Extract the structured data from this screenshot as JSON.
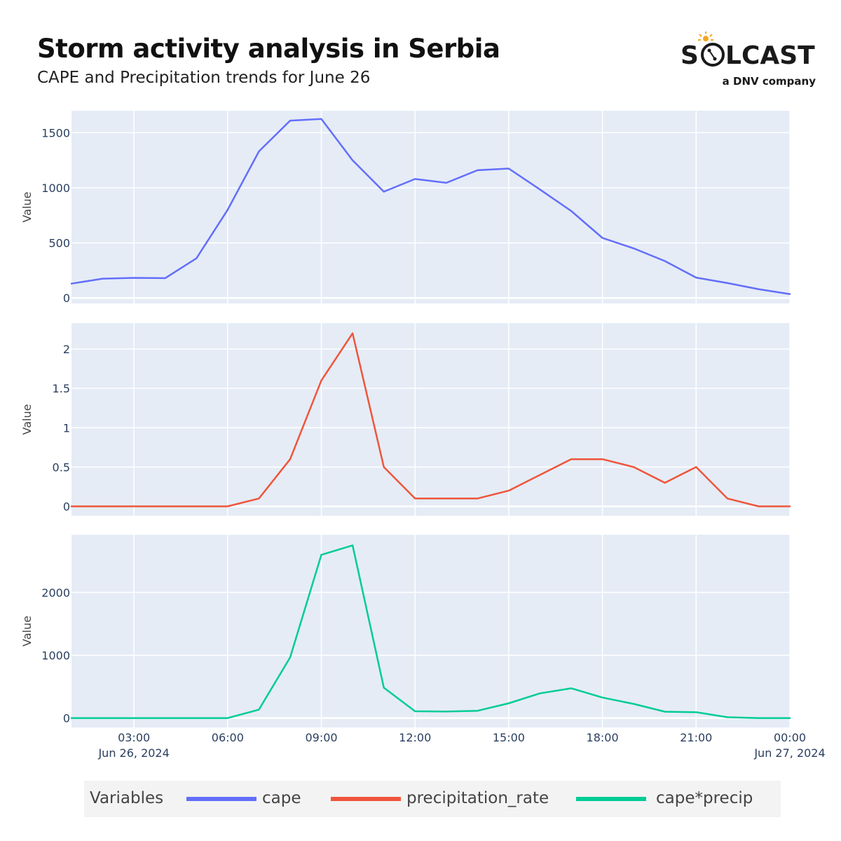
{
  "header": {
    "title": "Storm activity analysis in Serbia",
    "subtitle": "CAPE and Precipitation trends for June 26"
  },
  "logo": {
    "wordmark_left": "S",
    "wordmark_right": "LCAST",
    "tagline": "a DNV company",
    "colors": {
      "text": "#1a1a1a",
      "sun": "#f5a623"
    }
  },
  "legend": {
    "title": "Variables",
    "items": [
      {
        "label": "cape",
        "color": "#636efa"
      },
      {
        "label": "precipitation_rate",
        "color": "#ef553b"
      },
      {
        "label": "cape*precip",
        "color": "#00cc96"
      }
    ]
  },
  "chart_data": {
    "type": "line",
    "x_tick_labels": [
      {
        "time": "2024-06-26 03:00",
        "label": "03:00",
        "date": "Jun 26, 2024"
      },
      {
        "time": "2024-06-26 06:00",
        "label": "06:00",
        "date": ""
      },
      {
        "time": "2024-06-26 09:00",
        "label": "09:00",
        "date": ""
      },
      {
        "time": "2024-06-26 12:00",
        "label": "12:00",
        "date": ""
      },
      {
        "time": "2024-06-26 15:00",
        "label": "15:00",
        "date": ""
      },
      {
        "time": "2024-06-26 18:00",
        "label": "18:00",
        "date": ""
      },
      {
        "time": "2024-06-26 21:00",
        "label": "21:00",
        "date": ""
      },
      {
        "time": "2024-06-27 00:00",
        "label": "00:00",
        "date": "Jun 27, 2024"
      }
    ],
    "xlim": [
      "2024-06-26 01:00",
      "2024-06-27 00:00"
    ],
    "x": [
      "2024-06-26 01:00",
      "2024-06-26 02:00",
      "2024-06-26 03:00",
      "2024-06-26 04:00",
      "2024-06-26 05:00",
      "2024-06-26 06:00",
      "2024-06-26 07:00",
      "2024-06-26 08:00",
      "2024-06-26 09:00",
      "2024-06-26 10:00",
      "2024-06-26 11:00",
      "2024-06-26 12:00",
      "2024-06-26 13:00",
      "2024-06-26 14:00",
      "2024-06-26 15:00",
      "2024-06-26 16:00",
      "2024-06-26 17:00",
      "2024-06-26 18:00",
      "2024-06-26 19:00",
      "2024-06-26 20:00",
      "2024-06-26 21:00",
      "2024-06-26 22:00",
      "2024-06-26 23:00",
      "2024-06-27 00:00"
    ],
    "panels": [
      {
        "series_name": "cape",
        "color": "#636efa",
        "ylabel": "Value",
        "ylim": [
          -50,
          1700
        ],
        "y_ticks": [
          {
            "v": 0,
            "label": "0"
          },
          {
            "v": 500,
            "label": "500"
          },
          {
            "v": 1000,
            "label": "1000"
          },
          {
            "v": 1500,
            "label": "1500"
          }
        ],
        "values": [
          130,
          175,
          182,
          180,
          360,
          800,
          1330,
          1610,
          1625,
          1250,
          965,
          1080,
          1045,
          1160,
          1175,
          985,
          790,
          545,
          450,
          335,
          185,
          135,
          80,
          35
        ]
      },
      {
        "series_name": "precipitation_rate",
        "color": "#ef553b",
        "ylabel": "Value",
        "ylim": [
          -0.12,
          2.33
        ],
        "y_ticks": [
          {
            "v": 0,
            "label": "0"
          },
          {
            "v": 0.5,
            "label": "0.5"
          },
          {
            "v": 1,
            "label": "1"
          },
          {
            "v": 1.5,
            "label": "1.5"
          },
          {
            "v": 2,
            "label": "2"
          }
        ],
        "values": [
          0,
          0,
          0,
          0,
          0,
          0,
          0.1,
          0.6,
          1.6,
          2.2,
          0.5,
          0.1,
          0.1,
          0.1,
          0.2,
          0.4,
          0.6,
          0.6,
          0.5,
          0.3,
          0.5,
          0.1,
          0,
          0
        ]
      },
      {
        "series_name": "cape*precip",
        "color": "#00cc96",
        "ylabel": "Value",
        "ylim": [
          -150,
          2920
        ],
        "y_ticks": [
          {
            "v": 0,
            "label": "0"
          },
          {
            "v": 1000,
            "label": "1000"
          },
          {
            "v": 2000,
            "label": "2000"
          }
        ],
        "values": [
          0,
          0,
          0,
          0,
          0,
          0,
          133,
          966,
          2600,
          2750,
          483,
          108,
          105,
          116,
          235,
          394,
          474,
          327,
          225,
          101,
          93,
          13,
          0,
          0
        ]
      }
    ]
  }
}
